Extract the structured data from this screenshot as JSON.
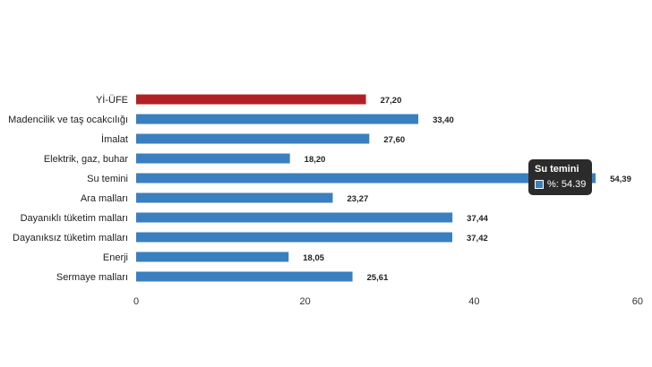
{
  "chart_data": {
    "type": "bar",
    "orientation": "horizontal",
    "categories": [
      "Yİ-ÜFE",
      "Madencilik ve taş ocakcılığı",
      "İmalat",
      "Elektrik, gaz, buhar",
      "Su temini",
      "Ara malları",
      "Dayanıklı tüketim malları",
      "Dayanıksız tüketim malları",
      "Enerji",
      "Sermaye malları"
    ],
    "values": [
      27.2,
      33.4,
      27.6,
      18.2,
      54.39,
      23.27,
      37.44,
      37.42,
      18.05,
      25.61
    ],
    "value_labels": [
      "27,20",
      "33,40",
      "27,60",
      "18,20",
      "54,39",
      "23,27",
      "37,44",
      "37,42",
      "18,05",
      "25,61"
    ],
    "xlim": [
      0,
      60
    ],
    "xticks": [
      "0",
      "20",
      "40",
      "60"
    ],
    "xtick_values": [
      0,
      20,
      40,
      60
    ],
    "highlight_category": "Yİ-ÜFE",
    "colors": {
      "bar": "#3a7fc0",
      "highlight": "#b22025"
    },
    "grid": false,
    "title": "",
    "xlabel": "",
    "ylabel": ""
  },
  "tooltip": {
    "title": "Su temini",
    "label": "%: 54.39"
  }
}
